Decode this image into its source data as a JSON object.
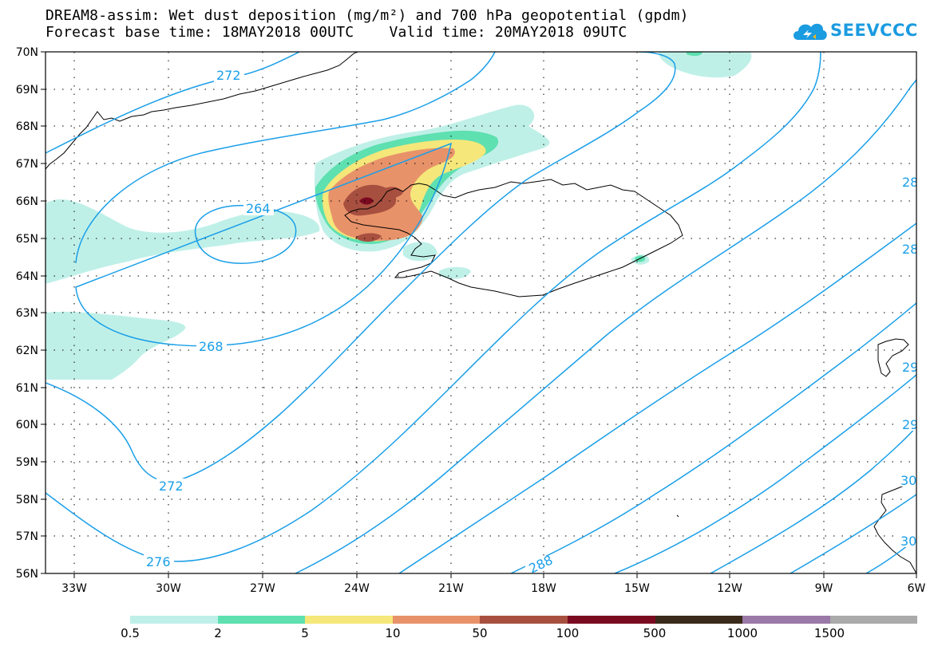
{
  "header": {
    "line1": "DREAM8-assim: Wet dust deposition (mg/m²) and 700 hPa geopotential (gpdm)",
    "line2": "Forecast base time: 18MAY2018 00UTC    Valid time: 20MAY2018 09UTC"
  },
  "logo": {
    "text": "SEEVCCC",
    "color": "#1b9be0"
  },
  "axes": {
    "lat_labels": [
      "70N",
      "69N",
      "68N",
      "67N",
      "66N",
      "65N",
      "64N",
      "63N",
      "62N",
      "61N",
      "60N",
      "59N",
      "58N",
      "57N",
      "56N"
    ],
    "lon_labels": [
      "33W",
      "30W",
      "27W",
      "24W",
      "21W",
      "18W",
      "15W",
      "12W",
      "9W",
      "6W"
    ]
  },
  "contours": {
    "color": "#1a9fe8",
    "labels": [
      "272",
      "264",
      "268",
      "272",
      "276",
      "288",
      "28",
      "28",
      "29",
      "29",
      "30",
      "30"
    ]
  },
  "legend": {
    "colors": [
      "#bff0e8",
      "#5ee0b0",
      "#f5e77a",
      "#e8926a",
      "#a85040",
      "#7a0a20",
      "#3a2a1a",
      "#9a78a8",
      "#aaaaaa"
    ],
    "labels": [
      "0.5",
      "2",
      "5",
      "10",
      "50",
      "100",
      "500",
      "1000",
      "1500"
    ]
  },
  "chart_data": {
    "type": "map",
    "variable": "Wet dust deposition (mg/m²)",
    "overlay": "700 hPa geopotential (gpdm)",
    "lon_range": [
      "34.5W",
      "6W"
    ],
    "lat_range": [
      "56N",
      "70N"
    ],
    "contour_levels": [
      264,
      268,
      272,
      276,
      280,
      284,
      288,
      292,
      296,
      300
    ],
    "deposition_classes": [
      0.5,
      2,
      5,
      10,
      50,
      100,
      500,
      1000,
      1500
    ]
  }
}
